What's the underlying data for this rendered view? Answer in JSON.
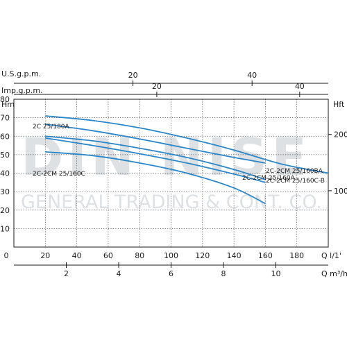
{
  "chart_data": {
    "type": "line",
    "axes": {
      "usgpm": {
        "label": "U.S.g.p.m.",
        "ticks": [
          20,
          40
        ],
        "range": [
          0,
          52.8
        ]
      },
      "impgpm": {
        "label": "Imp.g.p.m.",
        "ticks": [
          20,
          40
        ],
        "range": [
          0,
          44
        ]
      },
      "hm": {
        "label": "Hm",
        "ticks": [
          10,
          20,
          30,
          40,
          50,
          60,
          70,
          80
        ],
        "range": [
          0,
          80
        ]
      },
      "hft": {
        "label": "Hft",
        "ticks": [
          100,
          200
        ],
        "range": [
          0,
          262.5
        ]
      },
      "q_lmin": {
        "label": "Q l/1'",
        "ticks": [
          0,
          20,
          40,
          60,
          80,
          100,
          120,
          140,
          160,
          180
        ],
        "range": [
          0,
          200
        ]
      },
      "q_m3h": {
        "label": "Q m³/h",
        "ticks": [
          2,
          4,
          6,
          8,
          10
        ],
        "range": [
          0,
          12
        ]
      }
    },
    "x_unit": "l/min",
    "y_unit": "m",
    "grid": true,
    "series": [
      {
        "name": "2C 25/180A",
        "label_pos": "above-left",
        "x": [
          20,
          50,
          80,
          110,
          140,
          170,
          200
        ],
        "y": [
          71,
          68.5,
          64.5,
          59,
          52.5,
          45,
          40
        ]
      },
      {
        "name": "2C-2CM 25/160A",
        "label_pos": "below-right",
        "x": [
          20,
          50,
          80,
          110,
          140,
          160
        ],
        "y": [
          66.5,
          63,
          58.5,
          53.5,
          48.5,
          45.5
        ]
      },
      {
        "name": "2C-2CM 25/160BA",
        "label_pos": "below-right",
        "x": [
          20,
          50,
          80,
          110,
          140,
          160
        ],
        "y": [
          60,
          57.5,
          53.5,
          48.5,
          42,
          36.5
        ]
      },
      {
        "name": "2C-2CM 25/160C",
        "label_pos": "below-left",
        "x": [
          20,
          50,
          80,
          110,
          140,
          160
        ],
        "y": [
          59,
          55,
          50.5,
          45.5,
          39.5,
          35
        ]
      },
      {
        "name": "2C-2CM 25/160C-B",
        "label_pos": "below-right",
        "x": [
          20,
          50,
          80,
          110,
          140,
          160
        ],
        "y": [
          51.5,
          49.5,
          45.5,
          40,
          32,
          23.5
        ]
      }
    ]
  },
  "watermark": {
    "line1": "DIN NISE",
    "line2": "GENERAL TRADING & CONT. CO."
  },
  "colors": {
    "curve": "#2a86c8",
    "text": "#1a1a1a",
    "watermark": "#d8dce0"
  }
}
